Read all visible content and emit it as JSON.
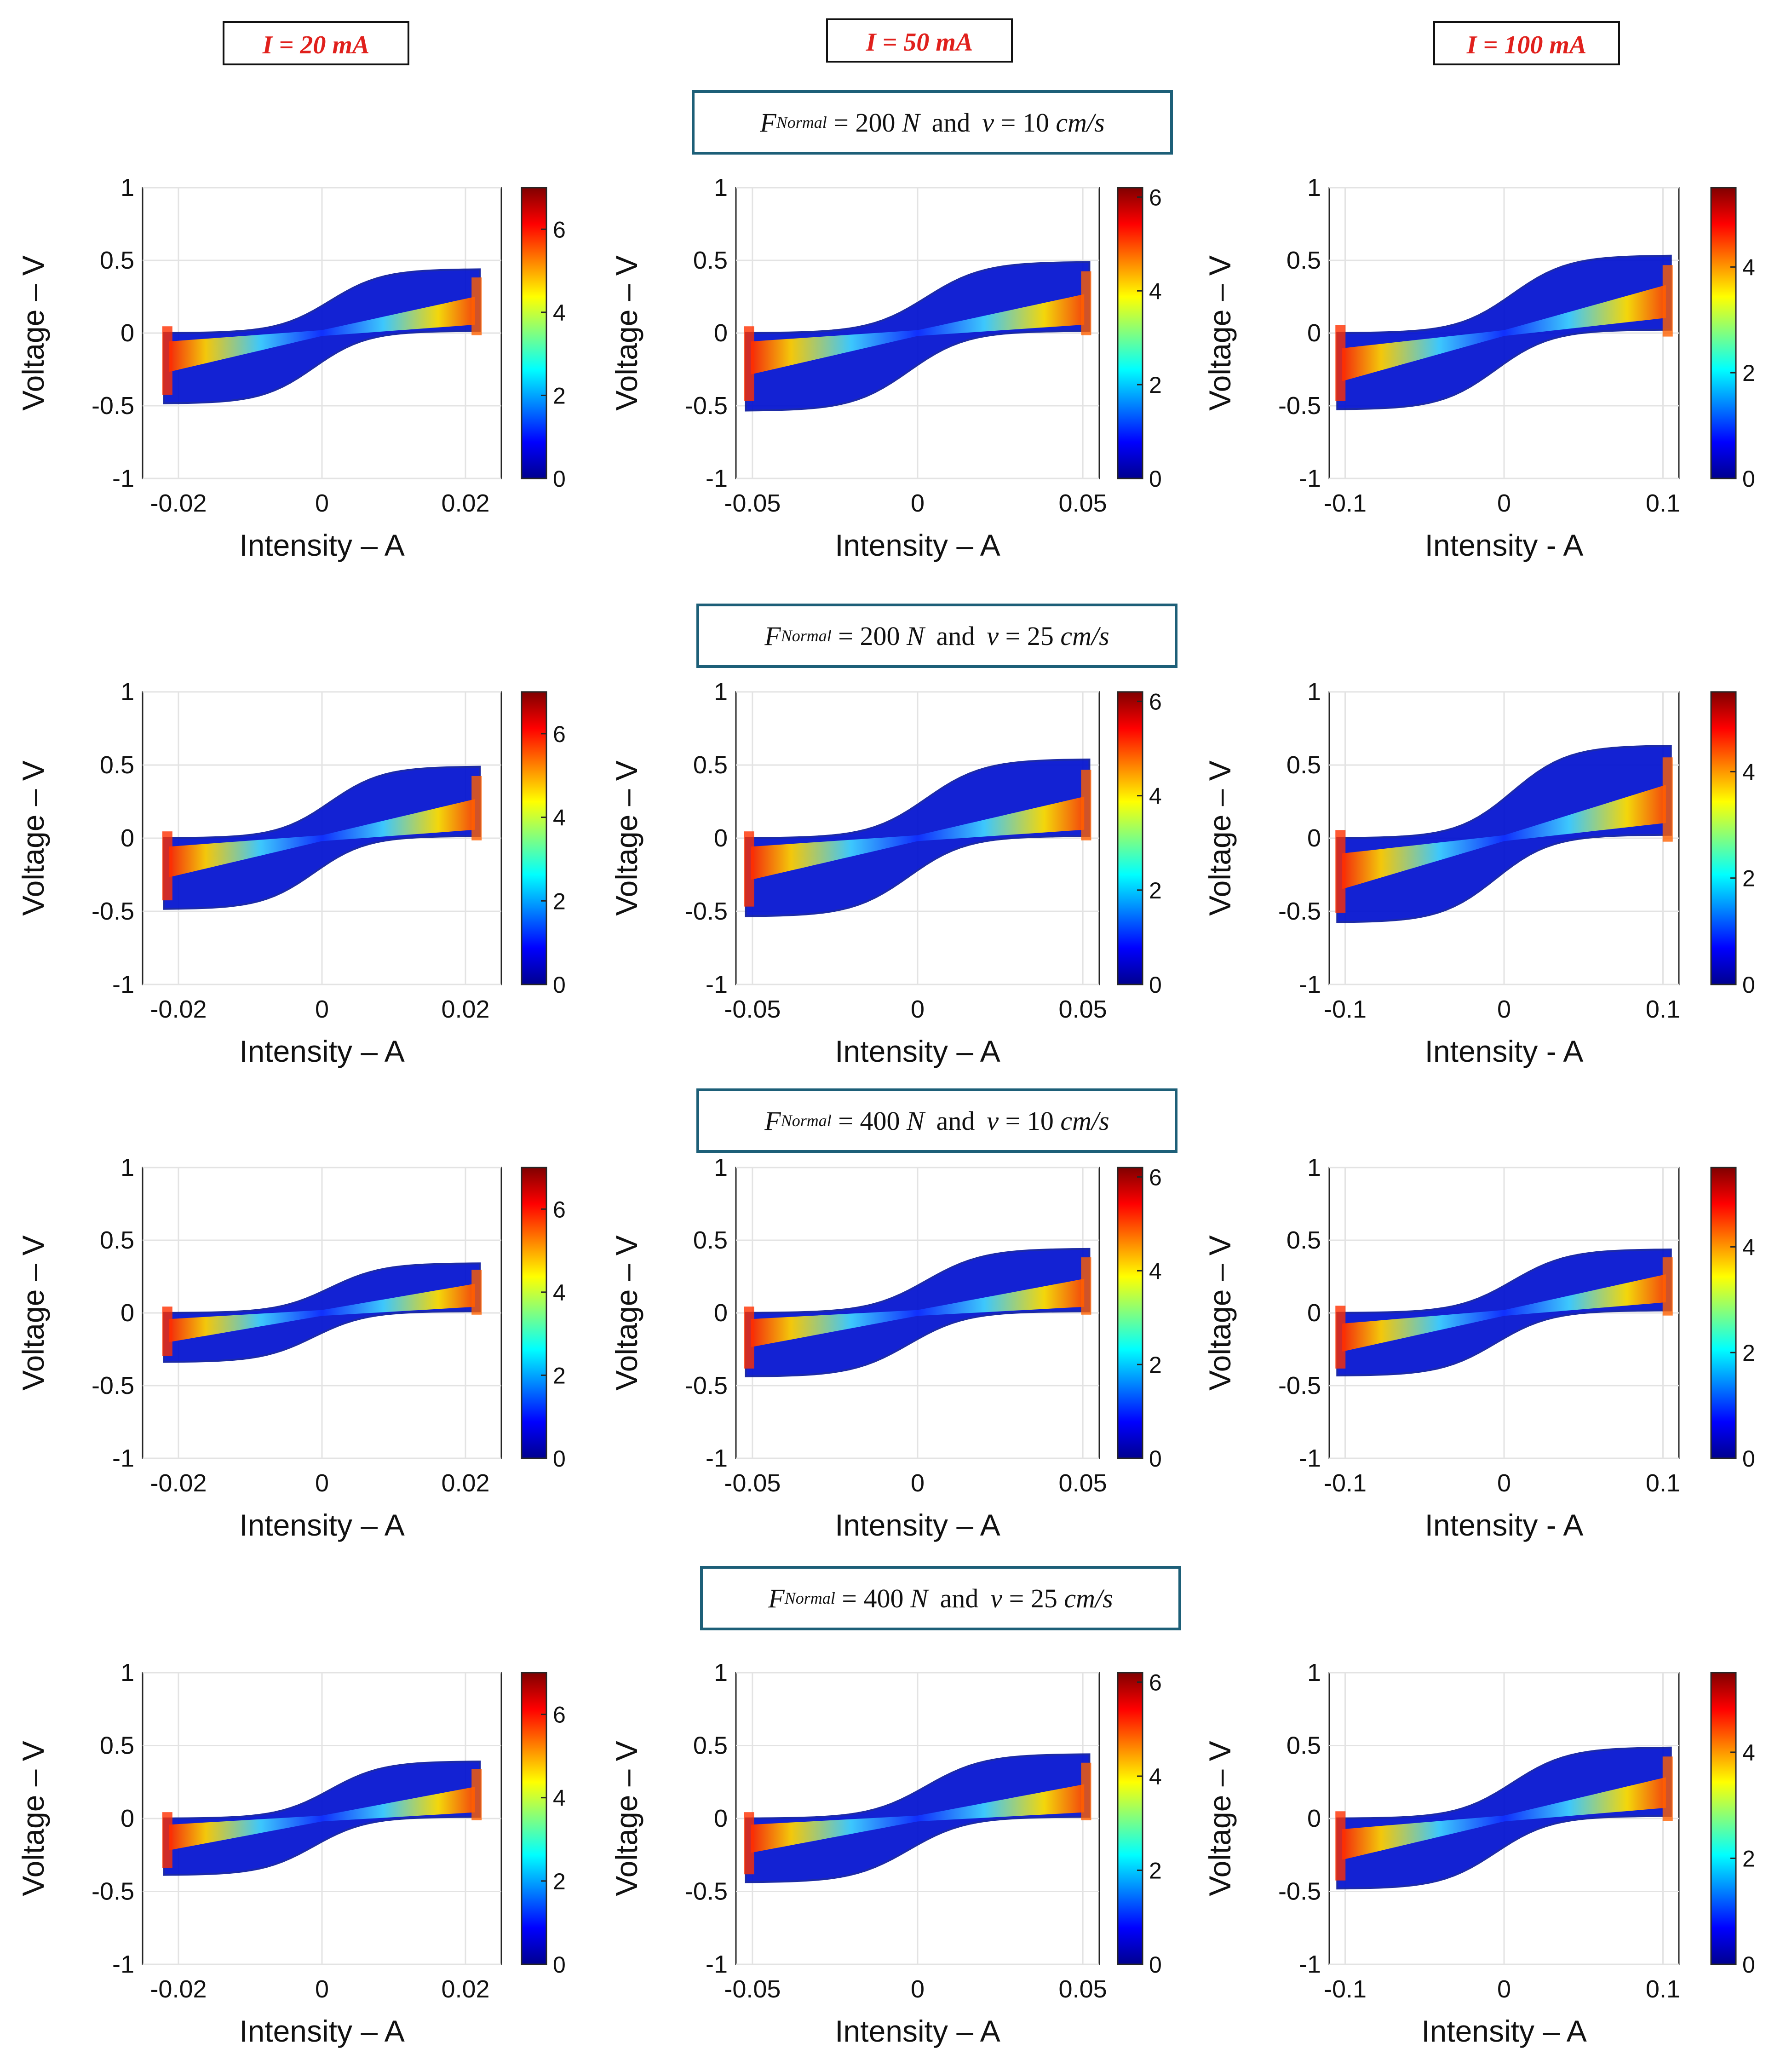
{
  "column_headers": [
    "I = 20 mA",
    "I = 50 mA",
    "I = 100 mA"
  ],
  "condition_headers": [
    {
      "force_symbol": "F",
      "force_subscript": "Normal",
      "force_value": "= 200",
      "force_unit": "N",
      "conj": "and",
      "speed_symbol": "v",
      "speed_value": "= 10",
      "speed_unit": "cm/s"
    },
    {
      "force_symbol": "F",
      "force_subscript": "Normal",
      "force_value": "= 200",
      "force_unit": "N",
      "conj": "and",
      "speed_symbol": "v",
      "speed_value": "= 25",
      "speed_unit": "cm/s"
    },
    {
      "force_symbol": "F",
      "force_subscript": "Normal",
      "force_value": "= 400",
      "force_unit": "N",
      "conj": "and",
      "speed_symbol": "v",
      "speed_value": "= 10",
      "speed_unit": "cm/s"
    },
    {
      "force_symbol": "F",
      "force_subscript": "Normal",
      "force_value": "= 400",
      "force_unit": "N",
      "conj": "and",
      "speed_symbol": "v",
      "speed_value": "= 25",
      "speed_unit": "cm/s"
    }
  ],
  "chart_data": [
    {
      "type": "heatmap",
      "row": 0,
      "col": 0,
      "xlabel": "Intensity – A",
      "ylabel": "Voltage – V",
      "xlim": [
        -0.025,
        0.025
      ],
      "ylim": [
        -1,
        1
      ],
      "xticks": [
        -0.02,
        0,
        0.02
      ],
      "xtick_labels": [
        "-0.02",
        "0",
        "0.02"
      ],
      "yticks": [
        -1,
        -0.5,
        0,
        0.5,
        1
      ],
      "ytick_labels": [
        "-1",
        "-0.5",
        "0",
        "0.5",
        "1"
      ],
      "colorbar": {
        "range": [
          0,
          7
        ],
        "ticks": [
          0,
          2,
          4,
          6
        ],
        "tick_labels": [
          "0",
          "2",
          "4",
          "6"
        ]
      },
      "amplitude": 0.022,
      "loop": {
        "upper_max": 0.45,
        "lower_min": -0.5,
        "inner_offset": 0.05
      },
      "grid": true
    },
    {
      "type": "heatmap",
      "row": 0,
      "col": 1,
      "xlabel": "Intensity – A",
      "ylabel": "Voltage – V",
      "xlim": [
        -0.055,
        0.055
      ],
      "ylim": [
        -1,
        1
      ],
      "xticks": [
        -0.05,
        0,
        0.05
      ],
      "xtick_labels": [
        "-0.05",
        "0",
        "0.05"
      ],
      "yticks": [
        -1,
        -0.5,
        0,
        0.5,
        1
      ],
      "ytick_labels": [
        "-1",
        "-0.5",
        "0",
        "0.5",
        "1"
      ],
      "colorbar": {
        "range": [
          0,
          6.2
        ],
        "ticks": [
          0,
          2,
          4,
          6
        ],
        "tick_labels": [
          "0",
          "2",
          "4",
          "6"
        ]
      },
      "amplitude": 0.052,
      "loop": {
        "upper_max": 0.5,
        "lower_min": -0.55,
        "inner_offset": 0.05
      },
      "grid": true
    },
    {
      "type": "heatmap",
      "row": 0,
      "col": 2,
      "xlabel": "Intensity - A",
      "ylabel": "Voltage – V",
      "xlim": [
        -0.11,
        0.11
      ],
      "ylim": [
        -1,
        1
      ],
      "xticks": [
        -0.1,
        0,
        0.1
      ],
      "xtick_labels": [
        "-0.1",
        "0",
        "0.1"
      ],
      "yticks": [
        -1,
        -0.5,
        0,
        0.5,
        1
      ],
      "ytick_labels": [
        "-1",
        "-0.5",
        "0",
        "0.5",
        "1"
      ],
      "colorbar": {
        "range": [
          0,
          5.5
        ],
        "ticks": [
          0,
          2,
          4
        ],
        "tick_labels": [
          "0",
          "2",
          "4"
        ]
      },
      "amplitude": 0.105,
      "loop": {
        "upper_max": 0.55,
        "lower_min": -0.55,
        "inner_offset": 0.08
      },
      "grid": true
    },
    {
      "type": "heatmap",
      "row": 1,
      "col": 0,
      "xlabel": "Intensity – A",
      "ylabel": "Voltage – V",
      "xlim": [
        -0.025,
        0.025
      ],
      "ylim": [
        -1,
        1
      ],
      "xticks": [
        -0.02,
        0,
        0.02
      ],
      "xtick_labels": [
        "-0.02",
        "0",
        "0.02"
      ],
      "yticks": [
        -1,
        -0.5,
        0,
        0.5,
        1
      ],
      "ytick_labels": [
        "-1",
        "-0.5",
        "0",
        "0.5",
        "1"
      ],
      "colorbar": {
        "range": [
          0,
          7
        ],
        "ticks": [
          0,
          2,
          4,
          6
        ],
        "tick_labels": [
          "0",
          "2",
          "4",
          "6"
        ]
      },
      "amplitude": 0.022,
      "loop": {
        "upper_max": 0.5,
        "lower_min": -0.5,
        "inner_offset": 0.05
      },
      "grid": true
    },
    {
      "type": "heatmap",
      "row": 1,
      "col": 1,
      "xlabel": "Intensity – A",
      "ylabel": "Voltage – V",
      "xlim": [
        -0.055,
        0.055
      ],
      "ylim": [
        -1,
        1
      ],
      "xticks": [
        -0.05,
        0,
        0.05
      ],
      "xtick_labels": [
        "-0.05",
        "0",
        "0.05"
      ],
      "yticks": [
        -1,
        -0.5,
        0,
        0.5,
        1
      ],
      "ytick_labels": [
        "-1",
        "-0.5",
        "0",
        "0.5",
        "1"
      ],
      "colorbar": {
        "range": [
          0,
          6.2
        ],
        "ticks": [
          0,
          2,
          4,
          6
        ],
        "tick_labels": [
          "0",
          "2",
          "4",
          "6"
        ]
      },
      "amplitude": 0.052,
      "loop": {
        "upper_max": 0.55,
        "lower_min": -0.55,
        "inner_offset": 0.05
      },
      "grid": true
    },
    {
      "type": "heatmap",
      "row": 1,
      "col": 2,
      "xlabel": "Intensity - A",
      "ylabel": "Voltage – V",
      "xlim": [
        -0.11,
        0.11
      ],
      "ylim": [
        -1,
        1
      ],
      "xticks": [
        -0.1,
        0,
        0.1
      ],
      "xtick_labels": [
        "-0.1",
        "0",
        "0.1"
      ],
      "yticks": [
        -1,
        -0.5,
        0,
        0.5,
        1
      ],
      "ytick_labels": [
        "-1",
        "-0.5",
        "0",
        "0.5",
        "1"
      ],
      "colorbar": {
        "range": [
          0,
          5.5
        ],
        "ticks": [
          0,
          2,
          4
        ],
        "tick_labels": [
          "0",
          "2",
          "4"
        ]
      },
      "amplitude": 0.105,
      "loop": {
        "upper_max": 0.65,
        "lower_min": -0.6,
        "inner_offset": 0.08
      },
      "grid": true
    },
    {
      "type": "heatmap",
      "row": 2,
      "col": 0,
      "xlabel": "Intensity – A",
      "ylabel": "Voltage – V",
      "xlim": [
        -0.025,
        0.025
      ],
      "ylim": [
        -1,
        1
      ],
      "xticks": [
        -0.02,
        0,
        0.02
      ],
      "xtick_labels": [
        "-0.02",
        "0",
        "0.02"
      ],
      "yticks": [
        -1,
        -0.5,
        0,
        0.5,
        1
      ],
      "ytick_labels": [
        "-1",
        "-0.5",
        "0",
        "0.5",
        "1"
      ],
      "colorbar": {
        "range": [
          0,
          7
        ],
        "ticks": [
          0,
          2,
          4,
          6
        ],
        "tick_labels": [
          "0",
          "2",
          "4",
          "6"
        ]
      },
      "amplitude": 0.022,
      "loop": {
        "upper_max": 0.35,
        "lower_min": -0.35,
        "inner_offset": 0.04
      },
      "grid": true
    },
    {
      "type": "heatmap",
      "row": 2,
      "col": 1,
      "xlabel": "Intensity – A",
      "ylabel": "Voltage – V",
      "xlim": [
        -0.055,
        0.055
      ],
      "ylim": [
        -1,
        1
      ],
      "xticks": [
        -0.05,
        0,
        0.05
      ],
      "xtick_labels": [
        "-0.05",
        "0",
        "0.05"
      ],
      "yticks": [
        -1,
        -0.5,
        0,
        0.5,
        1
      ],
      "ytick_labels": [
        "-1",
        "-0.5",
        "0",
        "0.5",
        "1"
      ],
      "colorbar": {
        "range": [
          0,
          6.2
        ],
        "ticks": [
          0,
          2,
          4,
          6
        ],
        "tick_labels": [
          "0",
          "2",
          "4",
          "6"
        ]
      },
      "amplitude": 0.052,
      "loop": {
        "upper_max": 0.45,
        "lower_min": -0.45,
        "inner_offset": 0.04
      },
      "grid": true
    },
    {
      "type": "heatmap",
      "row": 2,
      "col": 2,
      "xlabel": "Intensity - A",
      "ylabel": "Voltage – V",
      "xlim": [
        -0.11,
        0.11
      ],
      "ylim": [
        -1,
        1
      ],
      "xticks": [
        -0.1,
        0,
        0.1
      ],
      "xtick_labels": [
        "-0.1",
        "0",
        "0.1"
      ],
      "yticks": [
        -1,
        -0.5,
        0,
        0.5,
        1
      ],
      "ytick_labels": [
        "-1",
        "-0.5",
        "0",
        "0.5",
        "1"
      ],
      "colorbar": {
        "range": [
          0,
          5.5
        ],
        "ticks": [
          0,
          2,
          4
        ],
        "tick_labels": [
          "0",
          "2",
          "4"
        ]
      },
      "amplitude": 0.105,
      "loop": {
        "upper_max": 0.45,
        "lower_min": -0.45,
        "inner_offset": 0.06
      },
      "grid": true
    },
    {
      "type": "heatmap",
      "row": 3,
      "col": 0,
      "xlabel": "Intensity – A",
      "ylabel": "Voltage – V",
      "xlim": [
        -0.025,
        0.025
      ],
      "ylim": [
        -1,
        1
      ],
      "xticks": [
        -0.02,
        0,
        0.02
      ],
      "xtick_labels": [
        "-0.02",
        "0",
        "0.02"
      ],
      "yticks": [
        -1,
        -0.5,
        0,
        0.5,
        1
      ],
      "ytick_labels": [
        "-1",
        "-0.5",
        "0",
        "0.5",
        "1"
      ],
      "colorbar": {
        "range": [
          0,
          7
        ],
        "ticks": [
          0,
          2,
          4,
          6
        ],
        "tick_labels": [
          "0",
          "2",
          "4",
          "6"
        ]
      },
      "amplitude": 0.022,
      "loop": {
        "upper_max": 0.4,
        "lower_min": -0.4,
        "inner_offset": 0.04
      },
      "grid": true
    },
    {
      "type": "heatmap",
      "row": 3,
      "col": 1,
      "xlabel": "Intensity – A",
      "ylabel": "Voltage – V",
      "xlim": [
        -0.055,
        0.055
      ],
      "ylim": [
        -1,
        1
      ],
      "xticks": [
        -0.05,
        0,
        0.05
      ],
      "xtick_labels": [
        "-0.05",
        "0",
        "0.05"
      ],
      "yticks": [
        -1,
        -0.5,
        0,
        0.5,
        1
      ],
      "ytick_labels": [
        "-1",
        "-0.5",
        "0",
        "0.5",
        "1"
      ],
      "colorbar": {
        "range": [
          0,
          6.2
        ],
        "ticks": [
          0,
          2,
          4,
          6
        ],
        "tick_labels": [
          "0",
          "2",
          "4",
          "6"
        ]
      },
      "amplitude": 0.052,
      "loop": {
        "upper_max": 0.45,
        "lower_min": -0.45,
        "inner_offset": 0.04
      },
      "grid": true
    },
    {
      "type": "heatmap",
      "row": 3,
      "col": 2,
      "xlabel": "Intensity – A",
      "ylabel": "Voltage – V",
      "xlim": [
        -0.11,
        0.11
      ],
      "ylim": [
        -1,
        1
      ],
      "xticks": [
        -0.1,
        0,
        0.1
      ],
      "xtick_labels": [
        "-0.1",
        "0",
        "0.1"
      ],
      "yticks": [
        -1,
        -0.5,
        0,
        0.5,
        1
      ],
      "ytick_labels": [
        "-1",
        "-0.5",
        "0",
        "0.5",
        "1"
      ],
      "colorbar": {
        "range": [
          0,
          5.5
        ],
        "ticks": [
          0,
          2,
          4
        ],
        "tick_labels": [
          "0",
          "2",
          "4"
        ]
      },
      "amplitude": 0.105,
      "loop": {
        "upper_max": 0.5,
        "lower_min": -0.5,
        "inner_offset": 0.06
      },
      "grid": true
    }
  ]
}
